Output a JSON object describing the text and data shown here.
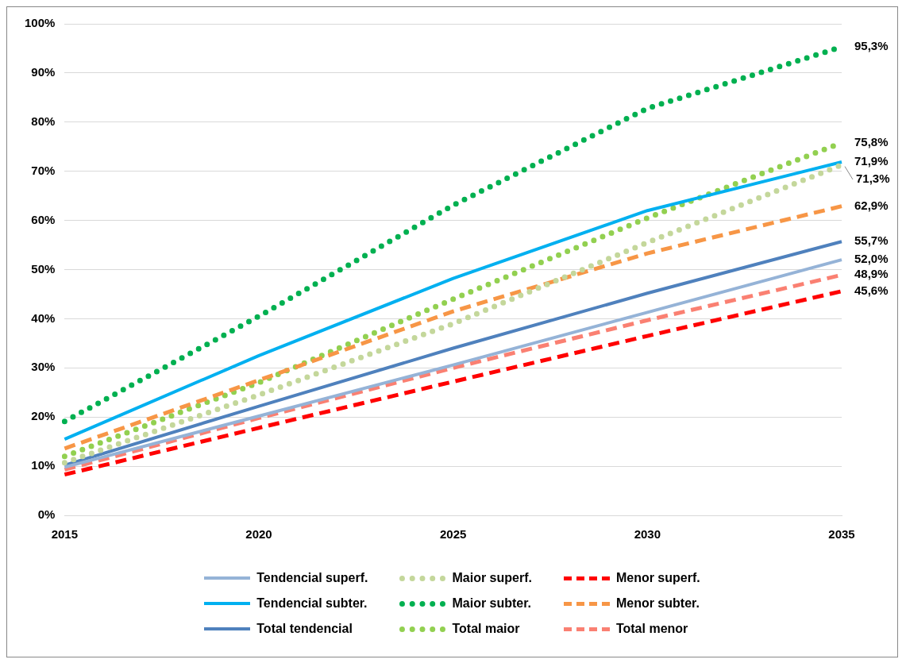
{
  "chart_data": {
    "type": "line",
    "categories": [
      "2015",
      "2020",
      "2025",
      "2030",
      "2035"
    ],
    "ylim": [
      0,
      100
    ],
    "yticks": [
      {
        "value": 0,
        "label": "0%"
      },
      {
        "value": 10,
        "label": "10%"
      },
      {
        "value": 20,
        "label": "20%"
      },
      {
        "value": 30,
        "label": "30%"
      },
      {
        "value": 40,
        "label": "40%"
      },
      {
        "value": 50,
        "label": "50%"
      },
      {
        "value": 60,
        "label": "60%"
      },
      {
        "value": 70,
        "label": "70%"
      },
      {
        "value": 80,
        "label": "80%"
      },
      {
        "value": 90,
        "label": "90%"
      },
      {
        "value": 100,
        "label": "100%"
      }
    ],
    "grid": "y",
    "legend": "bottom",
    "marker": "none",
    "series": [
      {
        "name": "Tendencial superf.",
        "color": "#95b3d7",
        "line_style": "solid",
        "values": [
          9.8,
          20.2,
          30.6,
          41.3,
          52.0
        ],
        "value_labels": [
          null,
          null,
          null,
          null,
          "52,0%"
        ]
      },
      {
        "name": "Maior superf.",
        "color": "#c4d79b",
        "line_style": "dotted",
        "values": [
          10.7,
          24.5,
          39.0,
          55.5,
          71.3
        ],
        "value_labels": [
          null,
          null,
          null,
          null,
          "71,3%"
        ]
      },
      {
        "name": "Menor superf.",
        "color": "#ff0000",
        "line_style": "dashed",
        "values": [
          8.3,
          17.8,
          27.2,
          36.5,
          45.6
        ],
        "value_labels": [
          null,
          null,
          null,
          null,
          "45,6%"
        ]
      },
      {
        "name": "Tendencial subter.",
        "color": "#00b0f0",
        "line_style": "solid",
        "values": [
          15.5,
          32.5,
          48.2,
          62.0,
          71.9
        ],
        "value_labels": [
          null,
          null,
          null,
          null,
          "71,9%"
        ]
      },
      {
        "name": "Maior subter.",
        "color": "#00b050",
        "line_style": "dotted",
        "values": [
          19.1,
          40.5,
          63.1,
          82.8,
          95.3
        ],
        "value_labels": [
          null,
          null,
          null,
          null,
          "95,3%"
        ]
      },
      {
        "name": "Menor subter.",
        "color": "#f79646",
        "line_style": "dashed",
        "values": [
          13.6,
          27.5,
          41.5,
          53.3,
          62.9
        ],
        "value_labels": [
          null,
          null,
          null,
          null,
          "62,9%"
        ]
      },
      {
        "name": "Total tendencial",
        "color": "#4f81bd",
        "line_style": "solid",
        "values": [
          10.2,
          22.2,
          34.0,
          45.2,
          55.7
        ],
        "value_labels": [
          null,
          null,
          null,
          null,
          "55,7%"
        ]
      },
      {
        "name": "Total maior",
        "color": "#92d050",
        "line_style": "dotted",
        "values": [
          12.0,
          27.0,
          44.0,
          60.5,
          75.8
        ],
        "value_labels": [
          null,
          null,
          null,
          null,
          "75,8%"
        ]
      },
      {
        "name": "Total menor",
        "color": "#fa8072",
        "line_style": "dashed",
        "values": [
          9.3,
          19.8,
          30.0,
          39.7,
          48.9
        ],
        "value_labels": [
          null,
          null,
          null,
          null,
          "48,9%"
        ]
      }
    ]
  }
}
